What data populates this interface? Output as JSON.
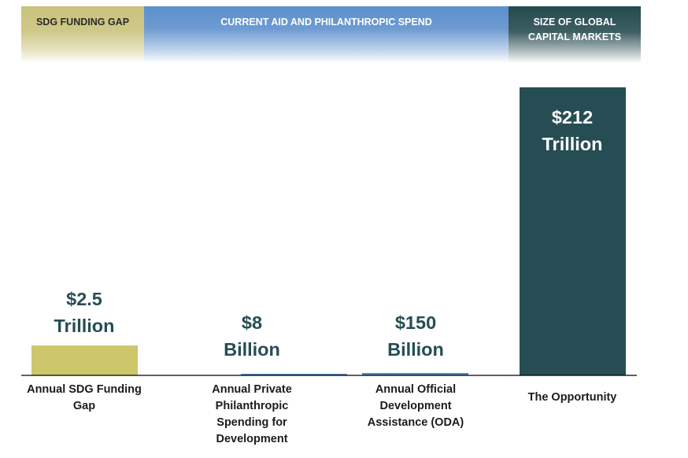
{
  "bands": {
    "sdg_gap": "SDG FUNDING GAP",
    "aid": "CURRENT AID AND PHILANTHROPIC SPEND",
    "capital_line1": "SIZE OF GLOBAL",
    "capital_line2": "CAPITAL MARKETS"
  },
  "colors": {
    "gap_bar": "#cdc66b",
    "aid_bar": "#5686ba",
    "capital_bar": "#264d53",
    "value_text": "#264d53",
    "value_text_on_dark": "#ffffff",
    "axis": "#000000"
  },
  "chart_data": {
    "type": "bar",
    "title": "",
    "xlabel": "",
    "ylabel": "",
    "unit": "USD",
    "categories": [
      [
        "Annual SDG Funding",
        "Gap"
      ],
      [
        "Annual Private",
        "Philanthropic",
        "Spending for",
        "Development"
      ],
      [
        "Annual Official",
        "Development",
        "Assistance (ODA)"
      ],
      [
        "The Opportunity"
      ]
    ],
    "values": [
      2500000000000,
      8000000000,
      150000000000,
      212000000000000
    ],
    "value_labels": [
      [
        "$2.5",
        "Trillion"
      ],
      [
        "$8",
        "Billion"
      ],
      [
        "$150",
        "Billion"
      ],
      [
        "$212",
        "Trillion"
      ]
    ],
    "bar_groups": [
      "sdg_gap",
      "aid",
      "aid",
      "capital"
    ],
    "note": "",
    "scale": "segmented"
  }
}
